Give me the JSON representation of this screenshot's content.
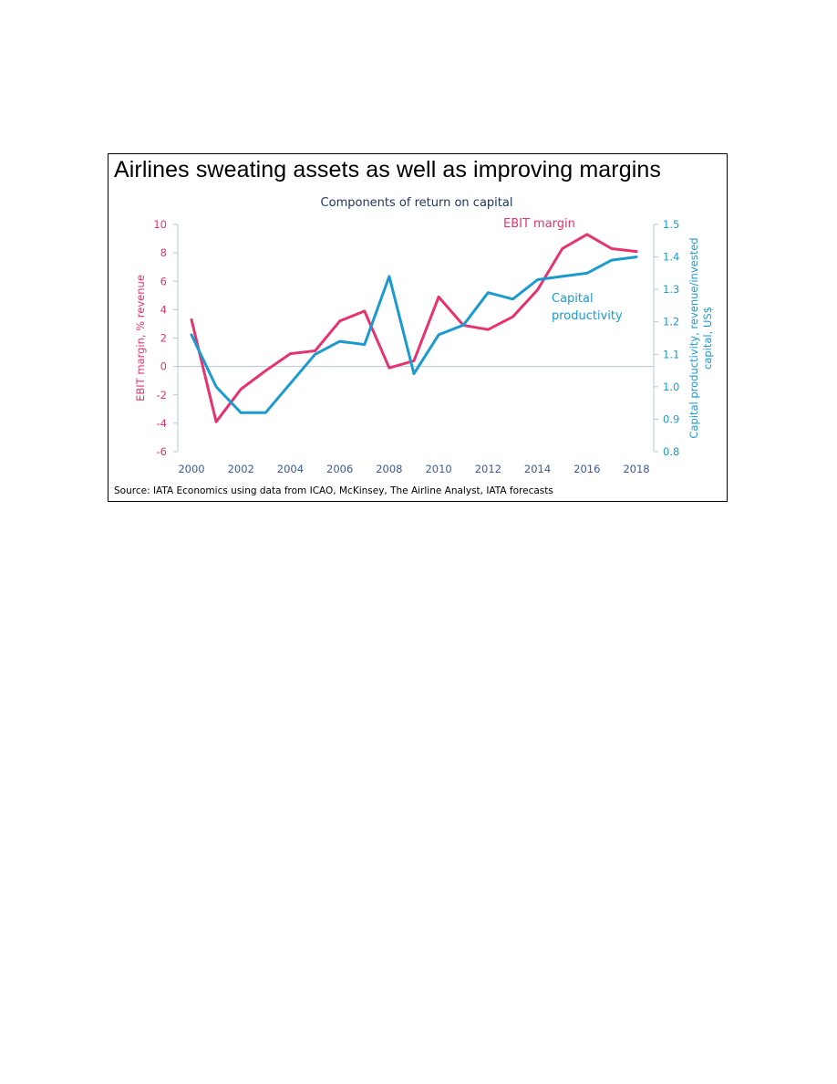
{
  "chart_data": {
    "type": "line",
    "title": "Airlines sweating assets as well as improving margins",
    "subtitle": "Components of return on capital",
    "source": "Source: IATA Economics using data from ICAO, McKinsey, The Airline Analyst, IATA forecasts",
    "x": [
      2000,
      2001,
      2002,
      2003,
      2004,
      2005,
      2006,
      2007,
      2008,
      2009,
      2010,
      2011,
      2012,
      2013,
      2014,
      2015,
      2016,
      2017,
      2018
    ],
    "x_ticks": [
      "2000",
      "2002",
      "2004",
      "2006",
      "2008",
      "2010",
      "2012",
      "2014",
      "2016",
      "2018"
    ],
    "y_left": {
      "label": "EBIT margin, % revenue",
      "ylim": [
        -6,
        10
      ],
      "ticks": [
        "-6",
        "-4",
        "-2",
        "0",
        "2",
        "4",
        "6",
        "8",
        "10"
      ]
    },
    "y_right": {
      "label_line1": "Capital productivity, revenue/invested",
      "label_line2": "capital, US$",
      "ylim": [
        0.8,
        1.5
      ],
      "ticks": [
        "0.8",
        "0.9",
        "1.0",
        "1.1",
        "1.2",
        "1.3",
        "1.4",
        "1.5"
      ]
    },
    "series": [
      {
        "name": "EBIT margin",
        "axis": "left",
        "color": "#e6336f",
        "values": [
          3.3,
          -3.9,
          -1.6,
          -0.3,
          0.9,
          1.1,
          3.2,
          3.9,
          -0.1,
          0.4,
          4.9,
          2.9,
          2.6,
          3.5,
          5.4,
          8.3,
          9.3,
          8.3,
          8.1
        ]
      },
      {
        "name": "Capital productivity",
        "axis": "right",
        "color": "#1b9ad0",
        "values": [
          1.16,
          1.0,
          0.92,
          0.92,
          1.01,
          1.1,
          1.14,
          1.13,
          1.34,
          1.04,
          1.16,
          1.19,
          1.29,
          1.27,
          1.33,
          1.34,
          1.35,
          1.39,
          1.4
        ]
      }
    ],
    "annotations": {
      "ebit_label": "EBIT margin",
      "cap_label_line1": "Capital",
      "cap_label_line2": "productivity"
    },
    "colors": {
      "ebit": "#e6336f",
      "capital": "#1b9ad0",
      "subtitle": "#1f3864",
      "x_ticks": "#3d5a9a",
      "axis_line": "#b8c4d8"
    },
    "grid": false,
    "legend": "none"
  }
}
